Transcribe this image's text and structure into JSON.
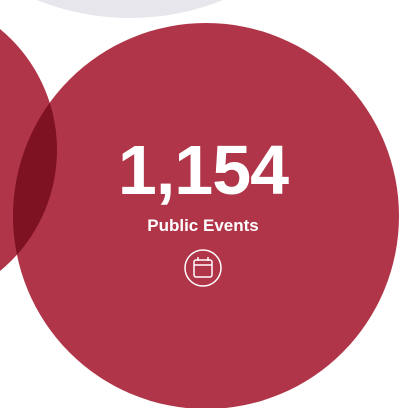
{
  "stat": {
    "value": "1,154",
    "label": "Public Events"
  }
}
